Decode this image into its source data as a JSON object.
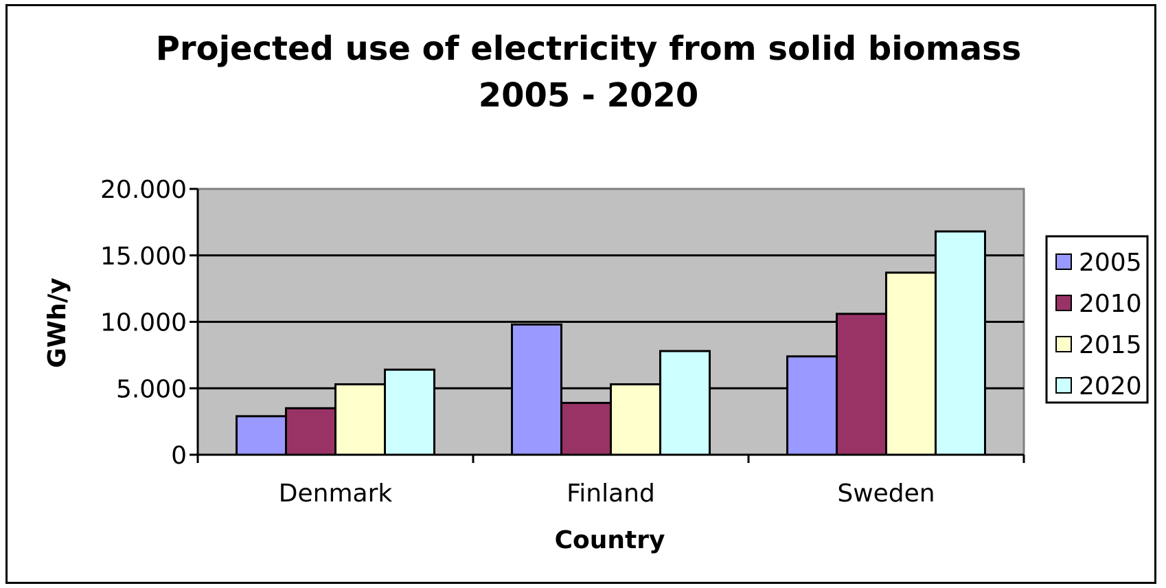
{
  "chart_data": {
    "type": "bar",
    "title_lines": [
      "Projected use  of electricity from solid biomass",
      "2005 - 2020"
    ],
    "xlabel": "Country",
    "ylabel": "GWh/y",
    "categories": [
      "Denmark",
      "Finland",
      "Sweden"
    ],
    "series": [
      {
        "name": "2005",
        "color": "#9999ff",
        "values": [
          2900,
          9800,
          7400
        ]
      },
      {
        "name": "2010",
        "color": "#993366",
        "values": [
          3500,
          3900,
          10600
        ]
      },
      {
        "name": "2015",
        "color": "#ffffcc",
        "values": [
          5300,
          5300,
          13700
        ]
      },
      {
        "name": "2020",
        "color": "#ccffff",
        "values": [
          6400,
          7800,
          16800
        ]
      }
    ],
    "ylim": [
      0,
      20000
    ],
    "yticks": [
      0,
      5000,
      10000,
      15000,
      20000
    ],
    "ytick_labels": [
      "0",
      "5.000",
      "10.000",
      "15.000",
      "20.000"
    ],
    "grid": true,
    "plot_background": "#c0c0c0",
    "legend_position": "right"
  }
}
